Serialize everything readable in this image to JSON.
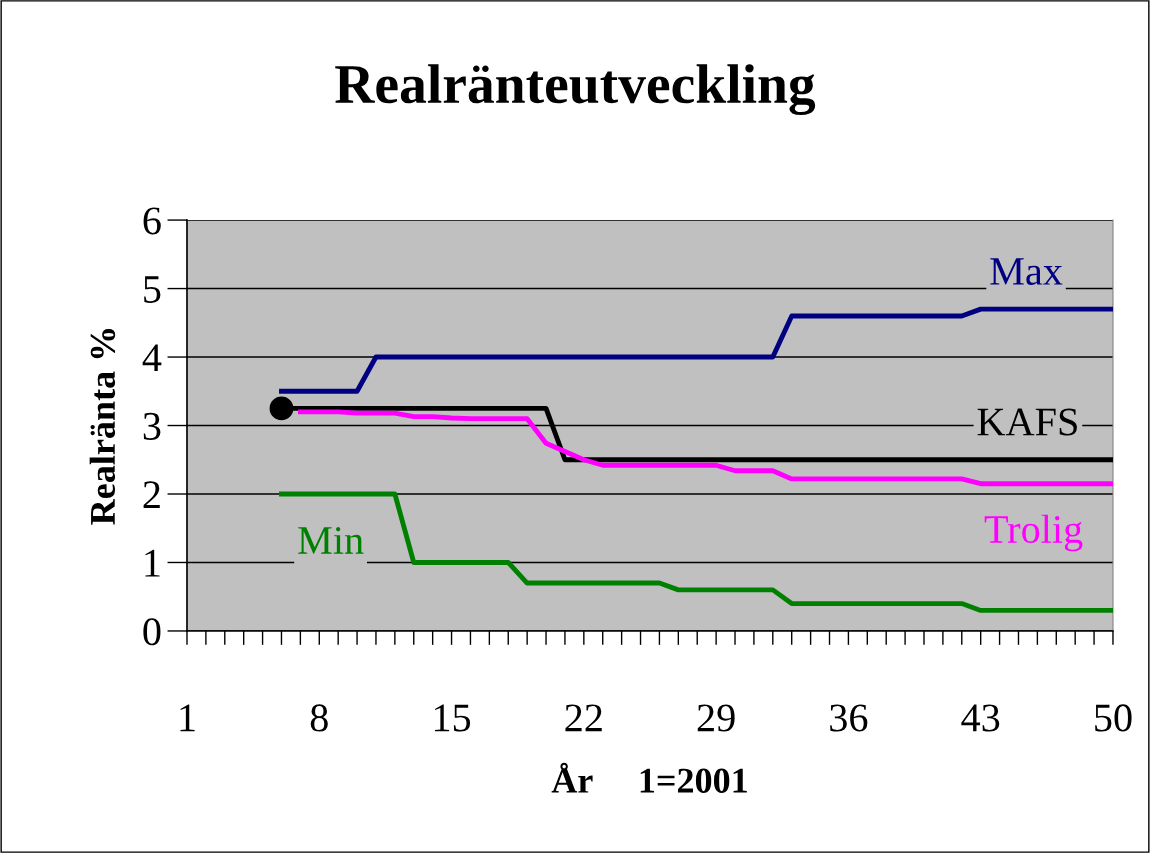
{
  "chart_data": {
    "type": "line",
    "title": "Realränteutveckling",
    "xlabel": "År     1=2001",
    "ylabel": "Realränta %",
    "x": [
      6,
      7,
      8,
      9,
      10,
      11,
      12,
      13,
      14,
      15,
      16,
      17,
      18,
      19,
      20,
      21,
      22,
      23,
      24,
      25,
      26,
      27,
      28,
      29,
      30,
      31,
      32,
      33,
      34,
      35,
      36,
      37,
      38,
      39,
      40,
      41,
      42,
      43,
      44,
      45,
      46,
      47,
      48,
      49,
      50
    ],
    "series": [
      {
        "name": "Max",
        "color": "#000080",
        "values": [
          3.5,
          3.5,
          3.5,
          3.5,
          3.5,
          4,
          4,
          4,
          4,
          4,
          4,
          4,
          4,
          4,
          4,
          4,
          4,
          4,
          4,
          4,
          4,
          4,
          4,
          4,
          4,
          4,
          4,
          4.6,
          4.6,
          4.6,
          4.6,
          4.6,
          4.6,
          4.6,
          4.6,
          4.6,
          4.6,
          4.7,
          4.7,
          4.7,
          4.7,
          4.7,
          4.7,
          4.7,
          4.7
        ]
      },
      {
        "name": "KAFS",
        "color": "#000000",
        "values": [
          3.25,
          3.25,
          3.25,
          3.25,
          3.25,
          3.25,
          3.25,
          3.25,
          3.25,
          3.25,
          3.25,
          3.25,
          3.25,
          3.25,
          3.25,
          2.5,
          2.5,
          2.5,
          2.5,
          2.5,
          2.5,
          2.5,
          2.5,
          2.5,
          2.5,
          2.5,
          2.5,
          2.5,
          2.5,
          2.5,
          2.5,
          2.5,
          2.5,
          2.5,
          2.5,
          2.5,
          2.5,
          2.5,
          2.5,
          2.5,
          2.5,
          2.5,
          2.5,
          2.5,
          2.5
        ]
      },
      {
        "name": "Trolig",
        "color": "#ff00ff",
        "values": [
          null,
          3.2,
          3.2,
          3.2,
          3.18,
          3.18,
          3.18,
          3.13,
          3.13,
          3.11,
          3.1,
          3.1,
          3.1,
          3.1,
          2.74,
          2.62,
          2.5,
          2.42,
          2.42,
          2.42,
          2.42,
          2.42,
          2.42,
          2.42,
          2.34,
          2.34,
          2.34,
          2.22,
          2.22,
          2.22,
          2.22,
          2.22,
          2.22,
          2.22,
          2.22,
          2.22,
          2.22,
          2.15,
          2.15,
          2.15,
          2.15,
          2.15,
          2.15,
          2.15,
          2.15
        ]
      },
      {
        "name": "Min",
        "color": "#008000",
        "values": [
          2,
          2,
          2,
          2,
          2,
          2,
          2,
          1,
          1,
          1,
          1,
          1,
          1,
          0.7,
          0.7,
          0.7,
          0.7,
          0.7,
          0.7,
          0.7,
          0.7,
          0.6,
          0.6,
          0.6,
          0.6,
          0.6,
          0.6,
          0.4,
          0.4,
          0.4,
          0.4,
          0.4,
          0.4,
          0.4,
          0.4,
          0.4,
          0.4,
          0.3,
          0.3,
          0.3,
          0.3,
          0.3,
          0.3,
          0.3,
          0.3
        ]
      },
      {
        "type": "scatter",
        "color": "#000000",
        "marker": "circle",
        "x": [
          6
        ],
        "values": [
          3.25
        ]
      }
    ],
    "xlim": [
      1,
      50
    ],
    "xticks": [
      1,
      8,
      15,
      22,
      29,
      36,
      43,
      50
    ],
    "ylim": [
      0,
      6
    ],
    "yticks": [
      0,
      1,
      2,
      3,
      4,
      5,
      6
    ],
    "grid": "y",
    "legend": false,
    "marker": "none",
    "line_style": "solid"
  }
}
